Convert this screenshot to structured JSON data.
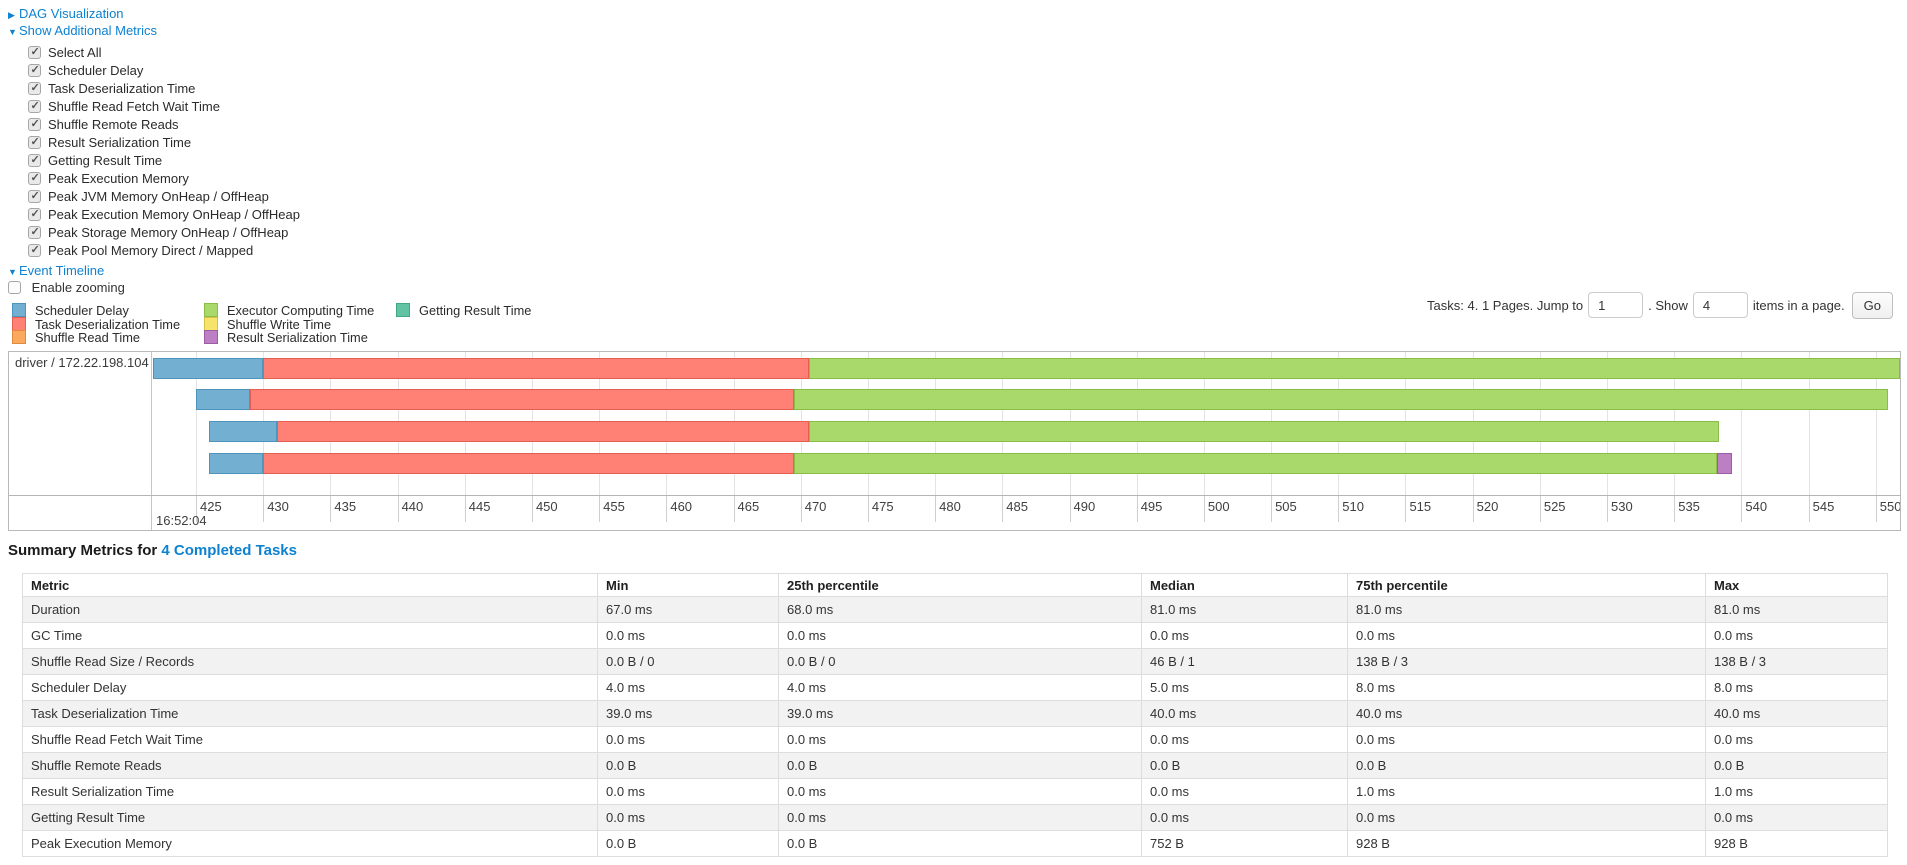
{
  "links": {
    "dag": "DAG Visualization",
    "metrics": "Show Additional Metrics",
    "event_timeline": "Event Timeline"
  },
  "metrics_panel": {
    "items": [
      "Select All",
      "Scheduler Delay",
      "Task Deserialization Time",
      "Shuffle Read Fetch Wait Time",
      "Shuffle Remote Reads",
      "Result Serialization Time",
      "Getting Result Time",
      "Peak Execution Memory",
      "Peak JVM Memory OnHeap / OffHeap",
      "Peak Execution Memory OnHeap / OffHeap",
      "Peak Storage Memory OnHeap / OffHeap",
      "Peak Pool Memory Direct / Mapped"
    ],
    "all_checked": true
  },
  "enable_zooming": {
    "label": "Enable zooming",
    "checked": false
  },
  "legend": {
    "columns": [
      [
        {
          "label": "Scheduler Delay",
          "type": "scheduler_delay"
        },
        {
          "label": "Task Deserialization Time",
          "type": "task_deserialization"
        },
        {
          "label": "Shuffle Read Time",
          "type": "shuffle_read"
        }
      ],
      [
        {
          "label": "Executor Computing Time",
          "type": "executor_computing"
        },
        {
          "label": "Shuffle Write Time",
          "type": "shuffle_write"
        },
        {
          "label": "Result Serialization Time",
          "type": "result_serialization"
        }
      ],
      [
        {
          "label": "Getting Result Time",
          "type": "getting_result"
        }
      ]
    ]
  },
  "pagination": {
    "prefix": "Tasks: 4. 1 Pages. Jump to",
    "jump_value": "1",
    "mid": ". Show",
    "show_value": "4",
    "suffix": "items in a page.",
    "go_label": "Go"
  },
  "timeline": {
    "row_label": "driver / 172.22.198.104",
    "axis": {
      "min": 421.8,
      "max": 551.8,
      "tick_start": 425,
      "tick_step": 5,
      "tick_end": 550,
      "date_label": "16:52:04"
    },
    "colors": {
      "scheduler_delay": {
        "fill": "#72AFD0",
        "border": "#4F94BA"
      },
      "task_deserialization": {
        "fill": "#FF8175",
        "border": "#E65F53"
      },
      "shuffle_read": {
        "fill": "#FBA95E",
        "border": "#DE8B3E"
      },
      "executor_computing": {
        "fill": "#A9D96B",
        "border": "#88BE47"
      },
      "shuffle_write": {
        "fill": "#F6E36B",
        "border": "#D8C244"
      },
      "result_serialization": {
        "fill": "#BD7FC3",
        "border": "#9D5BA6"
      },
      "getting_result": {
        "fill": "#62C3A4",
        "border": "#41A786"
      }
    },
    "bars": [
      {
        "segments": [
          {
            "type": "scheduler_delay",
            "start": 421.8,
            "end": 430.0
          },
          {
            "type": "task_deserialization",
            "start": 430.0,
            "end": 470.6
          },
          {
            "type": "executor_computing",
            "start": 470.6,
            "end": 551.8
          }
        ]
      },
      {
        "segments": [
          {
            "type": "scheduler_delay",
            "start": 425.0,
            "end": 429.0
          },
          {
            "type": "task_deserialization",
            "start": 429.0,
            "end": 469.5
          },
          {
            "type": "executor_computing",
            "start": 469.5,
            "end": 550.9
          }
        ]
      },
      {
        "segments": [
          {
            "type": "scheduler_delay",
            "start": 426.0,
            "end": 431.0
          },
          {
            "type": "task_deserialization",
            "start": 431.0,
            "end": 470.6
          },
          {
            "type": "executor_computing",
            "start": 470.6,
            "end": 538.3
          }
        ]
      },
      {
        "segments": [
          {
            "type": "scheduler_delay",
            "start": 426.0,
            "end": 430.0
          },
          {
            "type": "task_deserialization",
            "start": 430.0,
            "end": 469.5
          },
          {
            "type": "executor_computing",
            "start": 469.5,
            "end": 538.2
          },
          {
            "type": "result_serialization",
            "start": 538.2,
            "end": 539.3
          }
        ]
      }
    ]
  },
  "summary": {
    "title_prefix": "Summary Metrics for",
    "title_link": "4 Completed Tasks",
    "table": {
      "headers": [
        "Metric",
        "Min",
        "25th percentile",
        "Median",
        "75th percentile",
        "Max"
      ],
      "rows": [
        [
          "Duration",
          "67.0 ms",
          "68.0 ms",
          "81.0 ms",
          "81.0 ms",
          "81.0 ms"
        ],
        [
          "GC Time",
          "0.0 ms",
          "0.0 ms",
          "0.0 ms",
          "0.0 ms",
          "0.0 ms"
        ],
        [
          "Shuffle Read Size / Records",
          "0.0 B / 0",
          "0.0 B / 0",
          "46 B / 1",
          "138 B / 3",
          "138 B / 3"
        ],
        [
          "Scheduler Delay",
          "4.0 ms",
          "4.0 ms",
          "5.0 ms",
          "8.0 ms",
          "8.0 ms"
        ],
        [
          "Task Deserialization Time",
          "39.0 ms",
          "39.0 ms",
          "40.0 ms",
          "40.0 ms",
          "40.0 ms"
        ],
        [
          "Shuffle Read Fetch Wait Time",
          "0.0 ms",
          "0.0 ms",
          "0.0 ms",
          "0.0 ms",
          "0.0 ms"
        ],
        [
          "Shuffle Remote Reads",
          "0.0 B",
          "0.0 B",
          "0.0 B",
          "0.0 B",
          "0.0 B"
        ],
        [
          "Result Serialization Time",
          "0.0 ms",
          "0.0 ms",
          "0.0 ms",
          "1.0 ms",
          "1.0 ms"
        ],
        [
          "Getting Result Time",
          "0.0 ms",
          "0.0 ms",
          "0.0 ms",
          "0.0 ms",
          "0.0 ms"
        ],
        [
          "Peak Execution Memory",
          "0.0 B",
          "0.0 B",
          "752 B",
          "928 B",
          "928 B"
        ]
      ]
    }
  }
}
